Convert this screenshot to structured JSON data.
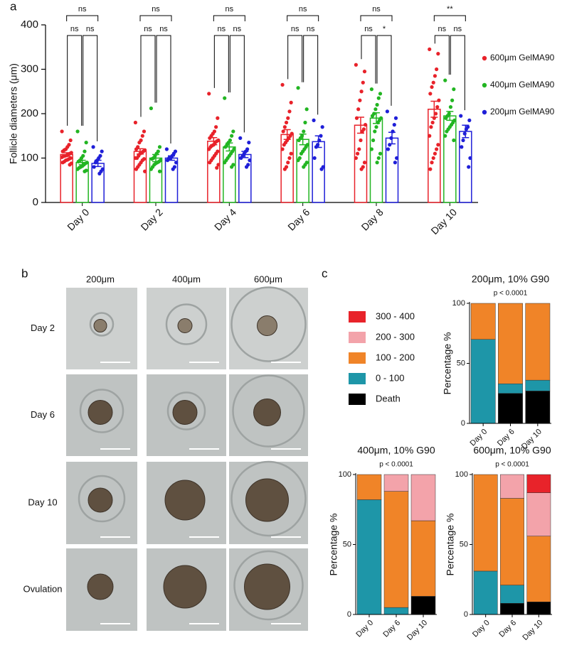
{
  "panel_labels": [
    "a",
    "b",
    "c"
  ],
  "image_grid": {
    "columns": [
      "200μm",
      "400μm",
      "600μm"
    ],
    "rows": [
      "Day 2",
      "Day 6",
      "Day 10",
      "Ovulation"
    ]
  },
  "chart_data": [
    {
      "type": "bar",
      "ylabel": "Follicle diameters (μm)",
      "categories": [
        "Day 0",
        "Day 2",
        "Day 4",
        "Day 6",
        "Day 8",
        "Day 10"
      ],
      "ylim": [
        0,
        400
      ],
      "yticks": [
        0,
        100,
        200,
        300,
        400
      ],
      "significance": [
        [
          "ns",
          "ns",
          "ns"
        ],
        [
          "ns",
          "ns",
          "ns"
        ],
        [
          "ns",
          "ns",
          "ns"
        ],
        [
          "ns",
          "ns",
          "ns"
        ],
        [
          "ns",
          "ns",
          "*"
        ],
        [
          "**",
          "ns",
          "ns"
        ]
      ],
      "series": [
        {
          "name": "600μm GelMA90",
          "color": "#e8222a",
          "values": [
            108,
            115,
            138,
            153,
            174,
            210
          ],
          "errors": [
            4,
            6,
            8,
            11,
            18,
            18
          ],
          "points": [
            [
              160,
              140,
              130,
              125,
              120,
              118,
              115,
              112,
              110,
              108,
              106,
              105,
              104,
              102,
              100,
              98,
              96,
              95,
              92,
              90,
              88,
              85
            ],
            [
              180,
              160,
              150,
              140,
              135,
              125,
              120,
              118,
              115,
              112,
              110,
              105,
              100,
              100,
              98,
              95,
              90,
              85,
              80,
              75,
              70
            ],
            [
              245,
              190,
              170,
              160,
              155,
              150,
              145,
              140,
              138,
              135,
              130,
              128,
              125,
              120,
              115,
              110,
              105,
              100,
              95,
              90,
              85,
              78
            ],
            [
              265,
              225,
              205,
              190,
              180,
              170,
              160,
              155,
              150,
              145,
              140,
              135,
              130,
              120,
              110,
              100,
              90,
              80,
              75
            ],
            [
              310,
              295,
              270,
              250,
              230,
              210,
              190,
              175,
              165,
              160,
              140,
              120,
              110,
              100,
              90,
              80,
              75
            ],
            [
              345,
              335,
              300,
              285,
              270,
              260,
              245,
              230,
              215,
              200,
              190,
              180,
              170,
              150,
              130,
              120,
              110,
              100,
              90,
              75
            ]
          ]
        },
        {
          "name": "400μm GelMA90",
          "color": "#22b522",
          "values": [
            90,
            100,
            125,
            142,
            190,
            195
          ],
          "errors": [
            5,
            8,
            9,
            12,
            12,
            10
          ],
          "points": [
            [
              160,
              135,
              115,
              105,
              100,
              95,
              92,
              90,
              88,
              85,
              82,
              80,
              78,
              75,
              72,
              70
            ],
            [
              212,
              125,
              115,
              110,
              105,
              100,
              98,
              95,
              92,
              90,
              88,
              85,
              80,
              75,
              70
            ],
            [
              235,
              160,
              150,
              140,
              135,
              130,
              125,
              120,
              115,
              110,
              105,
              100,
              95,
              90,
              85,
              80
            ],
            [
              258,
              210,
              180,
              160,
              150,
              145,
              140,
              130,
              125,
              120,
              115,
              110,
              100,
              95,
              90,
              85,
              80
            ],
            [
              255,
              245,
              235,
              220,
              210,
              200,
              195,
              190,
              185,
              180,
              170,
              160,
              140,
              120,
              110,
              100,
              90
            ],
            [
              275,
              255,
              230,
              215,
              200,
              195,
              190,
              185,
              180,
              175,
              170,
              165,
              160,
              150,
              140
            ]
          ]
        },
        {
          "name": "200μm GelMA90",
          "color": "#1f1fd8",
          "values": [
            88,
            100,
            108,
            137,
            145,
            160
          ],
          "errors": [
            7,
            5,
            7,
            13,
            13,
            14
          ],
          "points": [
            [
              125,
              115,
              105,
              100,
              95,
              90,
              80,
              75,
              70,
              65
            ],
            [
              120,
              115,
              110,
              105,
              100,
              100,
              95,
              90,
              80,
              75
            ],
            [
              145,
              135,
              120,
              115,
              110,
              105,
              100,
              95,
              85,
              80
            ],
            [
              185,
              170,
              150,
              140,
              130,
              125,
              100,
              80,
              75
            ],
            [
              205,
              190,
              175,
              160,
              145,
              130,
              120,
              100,
              90
            ],
            [
              195,
              185,
              170,
              165,
              155,
              140,
              125,
              100,
              80
            ]
          ]
        }
      ]
    },
    {
      "type": "stacked_bar",
      "title": "200μm, 10% G90",
      "annotation": "p < 0.0001",
      "ylabel": "Percentage %",
      "categories": [
        "Day 0",
        "Day 6",
        "Day 10"
      ],
      "ylim": [
        0,
        100
      ],
      "yticks": [
        0,
        50,
        100
      ],
      "series": [
        {
          "name": "Death",
          "color": "#000000",
          "values": [
            0,
            25,
            27
          ]
        },
        {
          "name": "0 - 100",
          "color": "#1e96a8",
          "values": [
            70,
            8,
            9
          ]
        },
        {
          "name": "100 - 200",
          "color": "#f08428",
          "values": [
            30,
            67,
            64
          ]
        },
        {
          "name": "200 - 300",
          "color": "#f3a3aa",
          "values": [
            0,
            0,
            0
          ]
        },
        {
          "name": "300 - 400",
          "color": "#e8232a",
          "values": [
            0,
            0,
            0
          ]
        }
      ]
    },
    {
      "type": "stacked_bar",
      "title": "400μm, 10% G90",
      "annotation": "p < 0.0001",
      "ylabel": "Percentage %",
      "categories": [
        "Day 0",
        "Day 6",
        "Day 10"
      ],
      "ylim": [
        0,
        100
      ],
      "yticks": [
        0,
        50,
        100
      ],
      "series": [
        {
          "name": "Death",
          "color": "#000000",
          "values": [
            0,
            0,
            13
          ]
        },
        {
          "name": "0 - 100",
          "color": "#1e96a8",
          "values": [
            82,
            5,
            0
          ]
        },
        {
          "name": "100 - 200",
          "color": "#f08428",
          "values": [
            18,
            83,
            54
          ]
        },
        {
          "name": "200 - 300",
          "color": "#f3a3aa",
          "values": [
            0,
            12,
            33
          ]
        },
        {
          "name": "300 - 400",
          "color": "#e8232a",
          "values": [
            0,
            0,
            0
          ]
        }
      ]
    },
    {
      "type": "stacked_bar",
      "title": "600μm, 10% G90",
      "annotation": "p < 0.0001",
      "ylabel": "Percentage %",
      "categories": [
        "Day 0",
        "Day 6",
        "Day 10"
      ],
      "ylim": [
        0,
        100
      ],
      "yticks": [
        0,
        50,
        100
      ],
      "series": [
        {
          "name": "Death",
          "color": "#000000",
          "values": [
            0,
            8,
            9
          ]
        },
        {
          "name": "0 - 100",
          "color": "#1e96a8",
          "values": [
            31,
            13,
            0
          ]
        },
        {
          "name": "100 - 200",
          "color": "#f08428",
          "values": [
            69,
            62,
            47
          ]
        },
        {
          "name": "200 - 300",
          "color": "#f3a3aa",
          "values": [
            0,
            17,
            31
          ]
        },
        {
          "name": "300 - 400",
          "color": "#e8232a",
          "values": [
            0,
            0,
            13
          ]
        }
      ]
    }
  ]
}
